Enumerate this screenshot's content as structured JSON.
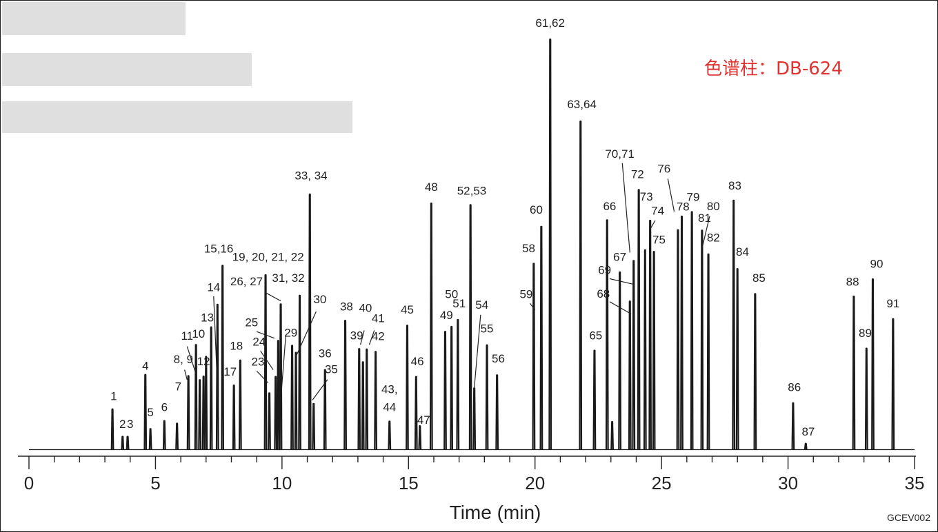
{
  "chart_data": {
    "type": "line",
    "annotation": "色谱柱：DB-624",
    "annotation_color": "#e03131",
    "xlabel": "Time (min)",
    "code": "GCEV002",
    "xlim": [
      0,
      35
    ],
    "ylim": [
      0,
      100
    ],
    "x_ticks": [
      0,
      5,
      10,
      15,
      20,
      25,
      30,
      35
    ],
    "x_tick_labels": [
      "0",
      "5",
      "10",
      "15",
      "20",
      "25",
      "30",
      "35"
    ],
    "line_color": "#1a1a1a",
    "grid": false,
    "peaks": [
      {
        "t": 3.3,
        "h": 9.8
      },
      {
        "t": 3.7,
        "h": 3.1
      },
      {
        "t": 3.9,
        "h": 3.1
      },
      {
        "t": 4.6,
        "h": 18.2
      },
      {
        "t": 4.8,
        "h": 5.0
      },
      {
        "t": 5.35,
        "h": 6.9
      },
      {
        "t": 5.85,
        "h": 6.3
      },
      {
        "t": 6.3,
        "h": 17.9
      },
      {
        "t": 6.6,
        "h": 25.5
      },
      {
        "t": 6.75,
        "h": 16.9
      },
      {
        "t": 6.9,
        "h": 17.8
      },
      {
        "t": 7.0,
        "h": 22.6
      },
      {
        "t": 7.2,
        "h": 29.8
      },
      {
        "t": 7.45,
        "h": 35.3
      },
      {
        "t": 7.65,
        "h": 44.8
      },
      {
        "t": 8.1,
        "h": 15.6
      },
      {
        "t": 8.35,
        "h": 21.7
      },
      {
        "t": 9.35,
        "h": 42.5
      },
      {
        "t": 9.5,
        "h": 13.7
      },
      {
        "t": 9.75,
        "h": 17.7
      },
      {
        "t": 9.85,
        "h": 26.5
      },
      {
        "t": 9.95,
        "h": 35.4
      },
      {
        "t": 10.4,
        "h": 25.3
      },
      {
        "t": 10.55,
        "h": 23.6
      },
      {
        "t": 10.7,
        "h": 37.5
      },
      {
        "t": 11.1,
        "h": 62.2
      },
      {
        "t": 11.25,
        "h": 11.1
      },
      {
        "t": 11.7,
        "h": 19.4
      },
      {
        "t": 12.5,
        "h": 31.4
      },
      {
        "t": 13.05,
        "h": 24.5
      },
      {
        "t": 13.2,
        "h": 21.3
      },
      {
        "t": 13.35,
        "h": 24.4
      },
      {
        "t": 13.7,
        "h": 23.8
      },
      {
        "t": 14.25,
        "h": 6.8
      },
      {
        "t": 14.95,
        "h": 30.2
      },
      {
        "t": 15.3,
        "h": 17.7
      },
      {
        "t": 15.45,
        "h": 5.7
      },
      {
        "t": 16.45,
        "h": 28.7
      },
      {
        "t": 16.7,
        "h": 29.9
      },
      {
        "t": 16.95,
        "h": 31.6
      },
      {
        "t": 15.9,
        "h": 60.0
      },
      {
        "t": 17.45,
        "h": 59.6
      },
      {
        "t": 17.6,
        "h": 14.9
      },
      {
        "t": 18.1,
        "h": 25.4
      },
      {
        "t": 18.5,
        "h": 18.1
      },
      {
        "t": 19.95,
        "h": 45.3
      },
      {
        "t": 20.25,
        "h": 54.3
      },
      {
        "t": 20.6,
        "h": 100.0
      },
      {
        "t": 21.8,
        "h": 80.0
      },
      {
        "t": 22.35,
        "h": 24.1
      },
      {
        "t": 22.85,
        "h": 55.9
      },
      {
        "t": 23.05,
        "h": 6.7
      },
      {
        "t": 23.35,
        "h": 43.2
      },
      {
        "t": 23.75,
        "h": 36.1
      },
      {
        "t": 23.9,
        "h": 46.0
      },
      {
        "t": 24.1,
        "h": 63.3
      },
      {
        "t": 24.35,
        "h": 48.6
      },
      {
        "t": 24.55,
        "h": 55.8
      },
      {
        "t": 24.7,
        "h": 48.2
      },
      {
        "t": 25.65,
        "h": 53.5
      },
      {
        "t": 25.8,
        "h": 56.8
      },
      {
        "t": 26.2,
        "h": 57.9
      },
      {
        "t": 26.6,
        "h": 53.4
      },
      {
        "t": 26.85,
        "h": 47.6
      },
      {
        "t": 27.85,
        "h": 60.7
      },
      {
        "t": 28.0,
        "h": 44.0
      },
      {
        "t": 28.7,
        "h": 37.9
      },
      {
        "t": 30.2,
        "h": 11.3
      },
      {
        "t": 30.7,
        "h": 1.4
      },
      {
        "t": 32.6,
        "h": 37.3
      },
      {
        "t": 33.1,
        "h": 24.6
      },
      {
        "t": 33.35,
        "h": 41.5
      },
      {
        "t": 34.15,
        "h": 31.8
      }
    ],
    "labels": [
      {
        "text": "1",
        "t": 3.35,
        "h": 12.0
      },
      {
        "text": "2",
        "t": 3.7,
        "h": 5.2
      },
      {
        "text": "3",
        "t": 4.0,
        "h": 5.2
      },
      {
        "text": "4",
        "t": 4.6,
        "h": 19.4
      },
      {
        "text": "5",
        "t": 4.8,
        "h": 8.1
      },
      {
        "text": "6",
        "t": 5.35,
        "h": 9.3
      },
      {
        "text": "7",
        "t": 5.9,
        "h": 14.4
      },
      {
        "text": "8, 9",
        "t": 6.1,
        "h": 21.0
      },
      {
        "text": "10",
        "t": 6.7,
        "h": 27.2
      },
      {
        "text": "11",
        "t": 6.25,
        "h": 26.7
      },
      {
        "text": "12",
        "t": 6.9,
        "h": 20.5
      },
      {
        "text": "13",
        "t": 7.05,
        "h": 31.2
      },
      {
        "text": "14",
        "t": 7.3,
        "h": 38.6
      },
      {
        "text": "15,16",
        "t": 7.5,
        "h": 48.0
      },
      {
        "text": "17",
        "t": 7.95,
        "h": 18.0
      },
      {
        "text": "18",
        "t": 8.2,
        "h": 24.3
      },
      {
        "text": "19, 20, 21, 22",
        "t": 9.45,
        "h": 46.0
      },
      {
        "text": "23",
        "t": 9.05,
        "h": 20.4
      },
      {
        "text": "24",
        "t": 9.1,
        "h": 25.3
      },
      {
        "text": "25",
        "t": 8.8,
        "h": 30.0
      },
      {
        "text": "26, 27",
        "t": 8.6,
        "h": 40.0
      },
      {
        "text": "29",
        "t": 10.35,
        "h": 27.5
      },
      {
        "text": "30",
        "t": 11.5,
        "h": 35.6
      },
      {
        "text": "31, 32",
        "t": 10.25,
        "h": 40.8
      },
      {
        "text": "33, 34",
        "t": 11.15,
        "h": 65.8
      },
      {
        "text": "35",
        "t": 11.95,
        "h": 18.6
      },
      {
        "text": "36",
        "t": 11.7,
        "h": 22.4
      },
      {
        "text": "38",
        "t": 12.55,
        "h": 33.9
      },
      {
        "text": "39",
        "t": 12.95,
        "h": 26.8
      },
      {
        "text": "40",
        "t": 13.3,
        "h": 33.5
      },
      {
        "text": "41",
        "t": 13.8,
        "h": 31.0
      },
      {
        "text": "42",
        "t": 13.8,
        "h": 26.6
      },
      {
        "text": "43,",
        "t": 14.25,
        "h": 13.7
      },
      {
        "text": "44",
        "t": 14.25,
        "h": 9.3
      },
      {
        "text": "45",
        "t": 14.95,
        "h": 33.1
      },
      {
        "text": "46",
        "t": 15.35,
        "h": 20.5
      },
      {
        "text": "47",
        "t": 15.6,
        "h": 6.2
      },
      {
        "text": "48",
        "t": 15.9,
        "h": 63.0
      },
      {
        "text": "49",
        "t": 16.5,
        "h": 31.8
      },
      {
        "text": "50",
        "t": 16.7,
        "h": 36.9
      },
      {
        "text": "51",
        "t": 17.0,
        "h": 34.6
      },
      {
        "text": "52,53",
        "t": 17.5,
        "h": 62.1
      },
      {
        "text": "54",
        "t": 17.9,
        "h": 34.3
      },
      {
        "text": "55",
        "t": 18.1,
        "h": 28.5
      },
      {
        "text": "56",
        "t": 18.55,
        "h": 21.2
      },
      {
        "text": "58",
        "t": 19.75,
        "h": 48.1
      },
      {
        "text": "59",
        "t": 19.65,
        "h": 36.9
      },
      {
        "text": "60",
        "t": 20.05,
        "h": 57.5
      },
      {
        "text": "61,62",
        "t": 20.6,
        "h": 103.0
      },
      {
        "text": "63,64",
        "t": 21.85,
        "h": 83.2
      },
      {
        "text": "65",
        "t": 22.4,
        "h": 26.8
      },
      {
        "text": "66",
        "t": 22.95,
        "h": 58.3
      },
      {
        "text": "67",
        "t": 23.35,
        "h": 46.0
      },
      {
        "text": "68",
        "t": 22.7,
        "h": 37.0
      },
      {
        "text": "69",
        "t": 22.75,
        "h": 42.8
      },
      {
        "text": "70,71",
        "t": 23.35,
        "h": 71.1
      },
      {
        "text": "72",
        "t": 24.05,
        "h": 66.1
      },
      {
        "text": "73",
        "t": 24.4,
        "h": 60.7
      },
      {
        "text": "74",
        "t": 24.85,
        "h": 57.2
      },
      {
        "text": "75",
        "t": 24.9,
        "h": 50.2
      },
      {
        "text": "76",
        "t": 25.1,
        "h": 67.5
      },
      {
        "text": "78",
        "t": 25.85,
        "h": 58.2
      },
      {
        "text": "79",
        "t": 26.25,
        "h": 60.6
      },
      {
        "text": "80",
        "t": 27.05,
        "h": 58.3
      },
      {
        "text": "81",
        "t": 26.7,
        "h": 55.5
      },
      {
        "text": "82",
        "t": 27.05,
        "h": 50.7
      },
      {
        "text": "83",
        "t": 27.9,
        "h": 63.4
      },
      {
        "text": "84",
        "t": 28.2,
        "h": 47.2
      },
      {
        "text": "85",
        "t": 28.85,
        "h": 40.8
      },
      {
        "text": "86",
        "t": 30.25,
        "h": 14.2
      },
      {
        "text": "87",
        "t": 30.8,
        "h": 3.4
      },
      {
        "text": "88",
        "t": 32.55,
        "h": 39.9
      },
      {
        "text": "89",
        "t": 33.05,
        "h": 27.4
      },
      {
        "text": "90",
        "t": 33.5,
        "h": 44.3
      },
      {
        "text": "91",
        "t": 34.15,
        "h": 34.6
      }
    ],
    "leaders": [
      {
        "t1": 6.25,
        "h1": 25.1,
        "t2": 6.6,
        "h2": 18.4
      },
      {
        "t1": 6.15,
        "h1": 19.4,
        "t2": 6.25,
        "h2": 17.0
      },
      {
        "t1": 7.0,
        "h1": 21.2,
        "t2": 7.0,
        "h2": 20.0
      },
      {
        "t1": 7.3,
        "h1": 37.3,
        "t2": 7.5,
        "h2": 7.3
      },
      {
        "t1": 9.0,
        "h1": 19.1,
        "t2": 9.45,
        "h2": 16.2
      },
      {
        "t1": 9.15,
        "h1": 24.0,
        "t2": 9.65,
        "h2": 19.4
      },
      {
        "t1": 9.0,
        "h1": 28.7,
        "t2": 9.7,
        "h2": 27.1
      },
      {
        "t1": 9.35,
        "h1": 38.2,
        "t2": 9.95,
        "h2": 36.2
      },
      {
        "t1": 10.15,
        "h1": 27.8,
        "t2": 9.95,
        "h2": 12.0
      },
      {
        "t1": 11.35,
        "h1": 33.6,
        "t2": 10.55,
        "h2": 22.6
      },
      {
        "t1": 11.8,
        "h1": 17.0,
        "t2": 11.2,
        "h2": 12.0
      },
      {
        "t1": 13.25,
        "h1": 29.0,
        "t2": 13.1,
        "h2": 25.5
      },
      {
        "t1": 13.65,
        "h1": 29.0,
        "t2": 13.45,
        "h2": 25.5
      },
      {
        "t1": 17.85,
        "h1": 32.8,
        "t2": 17.6,
        "h2": 15.0
      },
      {
        "t1": 19.8,
        "h1": 35.6,
        "t2": 20.0,
        "h2": 34.0
      },
      {
        "t1": 22.95,
        "h1": 41.6,
        "t2": 23.85,
        "h2": 40.3
      },
      {
        "t1": 22.95,
        "h1": 36.0,
        "t2": 23.8,
        "h2": 33.0
      },
      {
        "t1": 23.45,
        "h1": 69.8,
        "t2": 23.75,
        "h2": 48.0
      },
      {
        "t1": 24.75,
        "h1": 55.8,
        "t2": 24.55,
        "h2": 53.7
      },
      {
        "t1": 25.25,
        "h1": 66.0,
        "t2": 25.5,
        "h2": 58.0
      },
      {
        "t1": 26.9,
        "h1": 56.8,
        "t2": 26.6,
        "h2": 49.0
      }
    ]
  }
}
